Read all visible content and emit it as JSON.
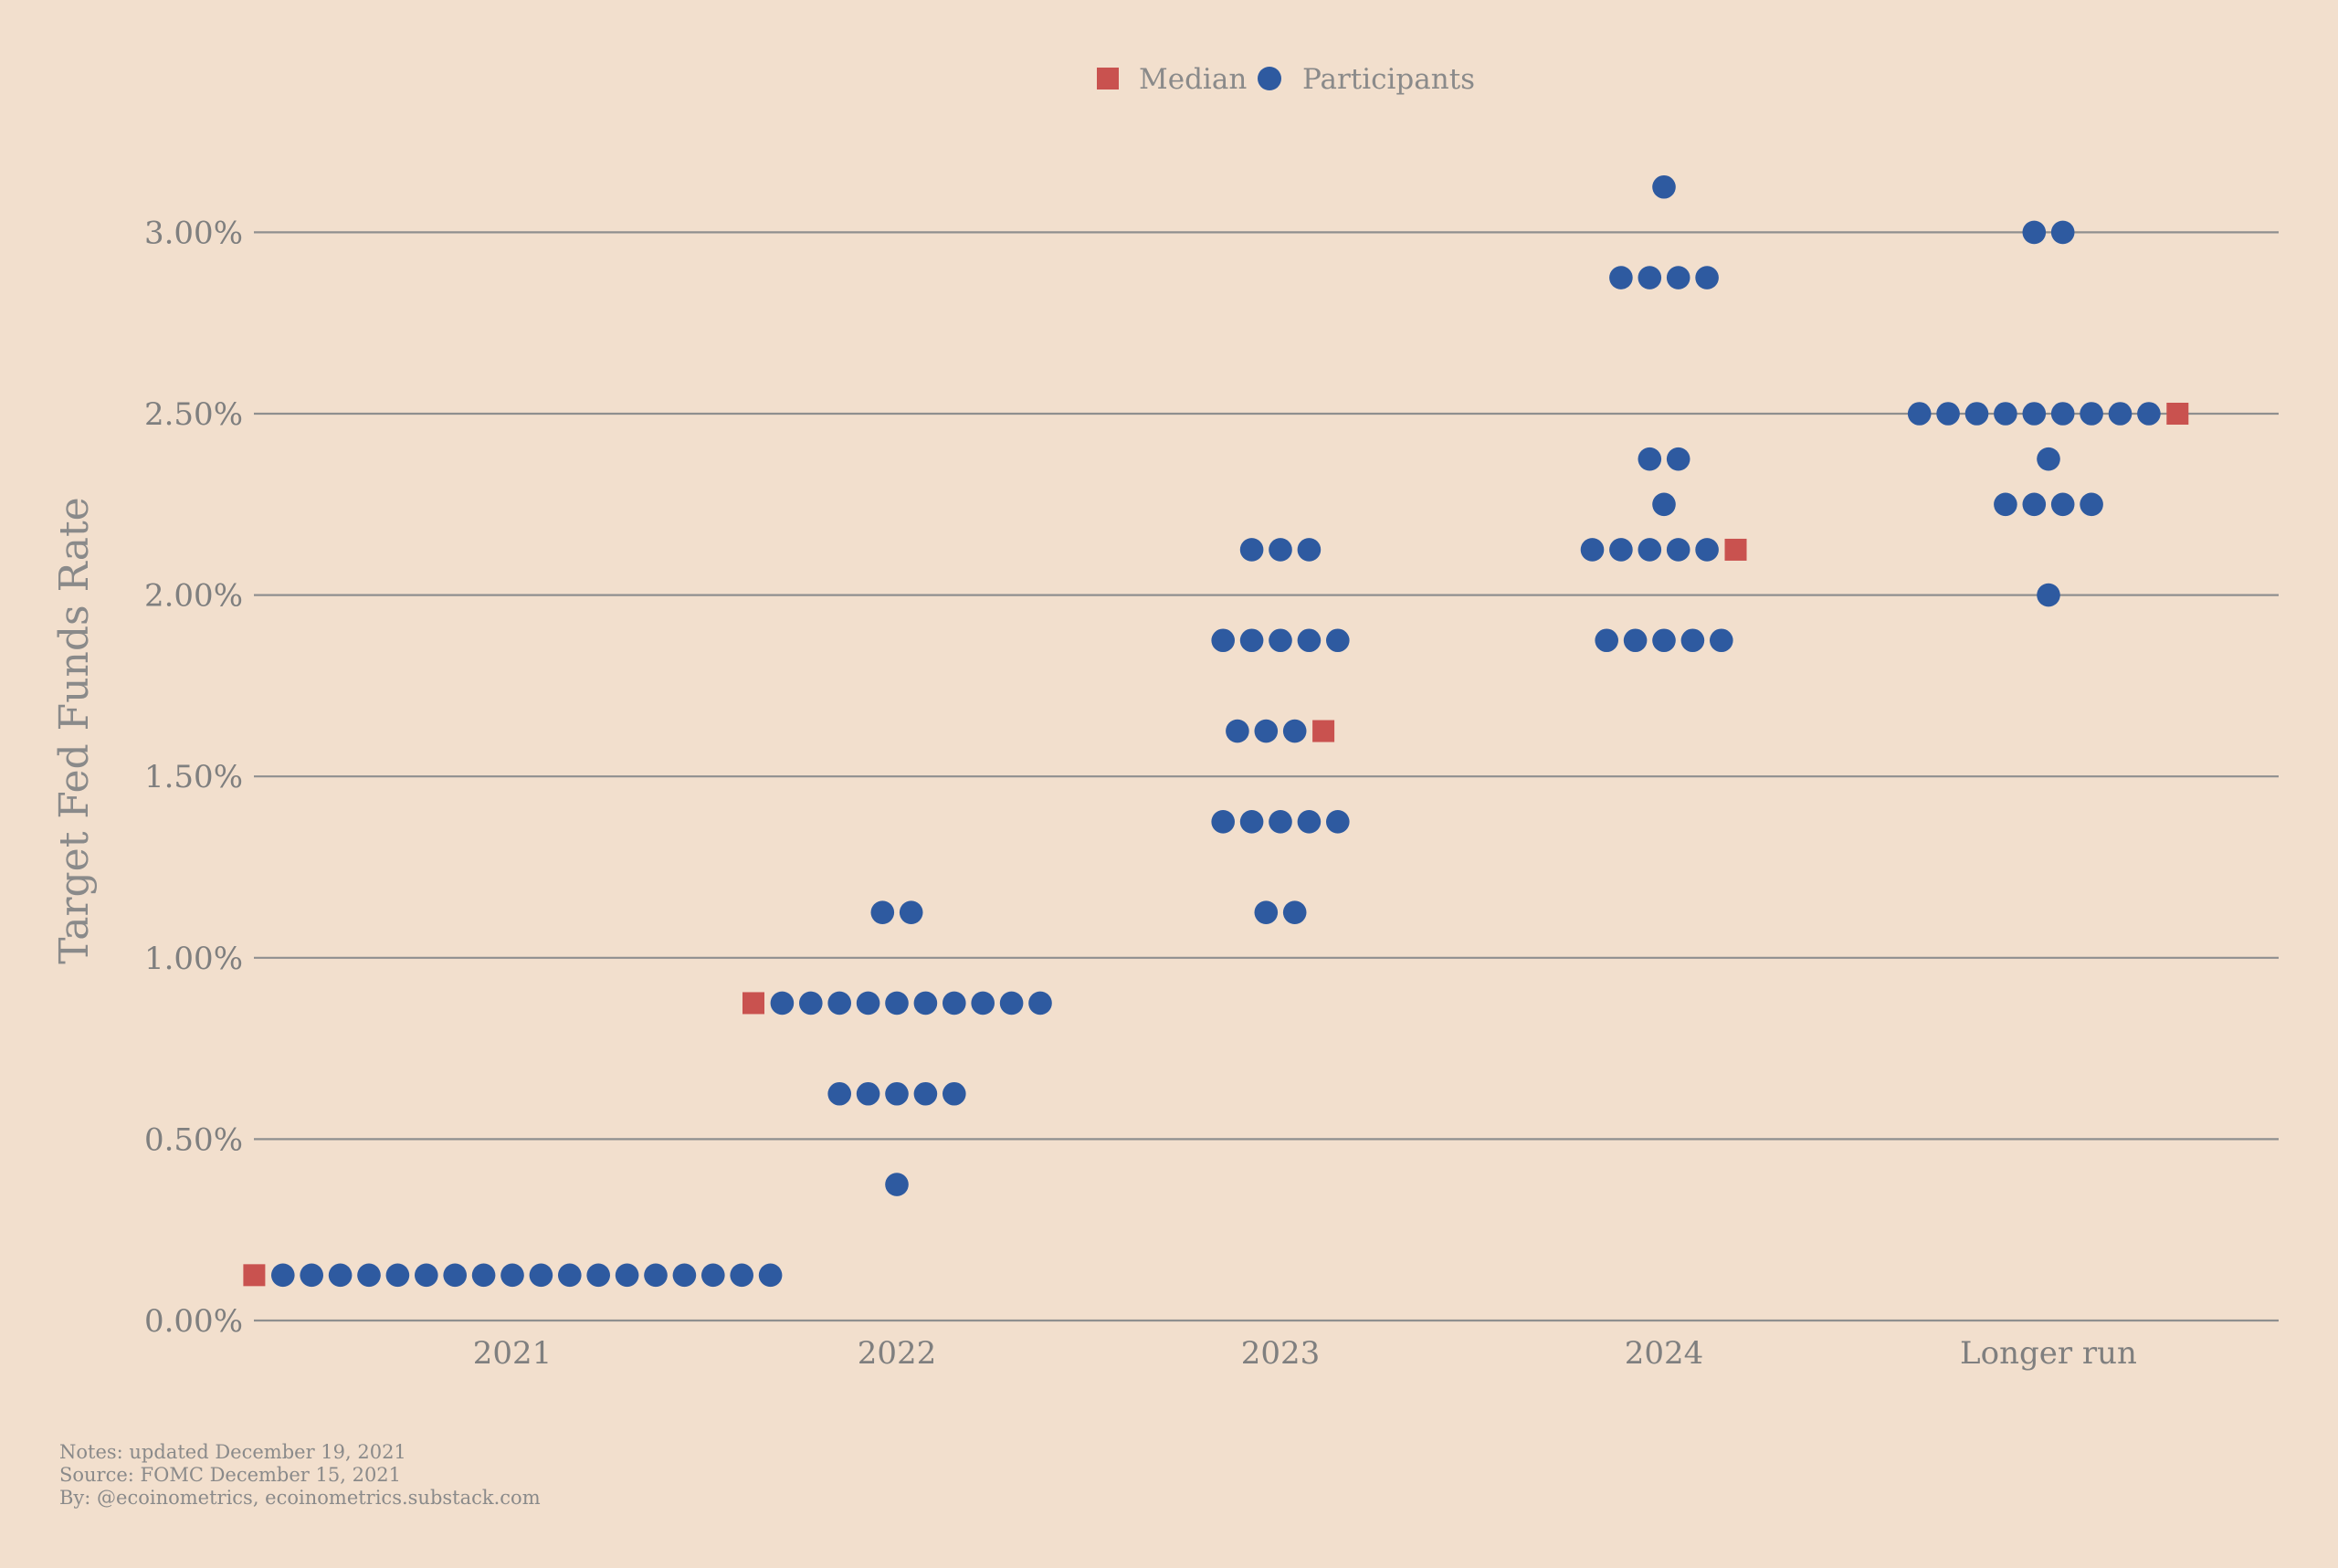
{
  "chart_data": {
    "type": "scatter",
    "title": "",
    "xlabel": "",
    "ylabel": "Target Fed Funds Rate",
    "categories": [
      "2021",
      "2022",
      "2023",
      "2024",
      "Longer run"
    ],
    "ylim": [
      0,
      3.25
    ],
    "yticks": [
      0,
      0.5,
      1.0,
      1.5,
      2.0,
      2.5,
      3.0
    ],
    "ytick_labels": [
      "0.00%",
      "0.50%",
      "1.00%",
      "1.50%",
      "2.00%",
      "2.50%",
      "3.00%"
    ],
    "grid": true,
    "legend_position": "top-center",
    "legend": [
      {
        "name": "Median",
        "marker": "square",
        "color": "#c9524f"
      },
      {
        "name": "Participants",
        "marker": "circle",
        "color": "#2e5aa0"
      }
    ],
    "participants": [
      {
        "category": "2021",
        "dots": [
          {
            "rate": 0.125,
            "count": 18
          }
        ]
      },
      {
        "category": "2022",
        "dots": [
          {
            "rate": 1.125,
            "count": 2
          },
          {
            "rate": 0.875,
            "count": 10
          },
          {
            "rate": 0.625,
            "count": 5
          },
          {
            "rate": 0.375,
            "count": 1
          }
        ]
      },
      {
        "category": "2023",
        "dots": [
          {
            "rate": 2.125,
            "count": 3
          },
          {
            "rate": 1.875,
            "count": 5
          },
          {
            "rate": 1.625,
            "count": 3
          },
          {
            "rate": 1.375,
            "count": 5
          },
          {
            "rate": 1.125,
            "count": 2
          }
        ]
      },
      {
        "category": "2024",
        "dots": [
          {
            "rate": 3.125,
            "count": 1
          },
          {
            "rate": 2.875,
            "count": 4
          },
          {
            "rate": 2.375,
            "count": 2
          },
          {
            "rate": 2.25,
            "count": 1
          },
          {
            "rate": 2.125,
            "count": 5
          },
          {
            "rate": 1.875,
            "count": 5
          }
        ]
      },
      {
        "category": "Longer run",
        "dots": [
          {
            "rate": 3.0,
            "count": 2
          },
          {
            "rate": 2.5,
            "count": 9
          },
          {
            "rate": 2.375,
            "count": 1
          },
          {
            "rate": 2.25,
            "count": 4
          },
          {
            "rate": 2.0,
            "count": 1
          }
        ]
      }
    ],
    "medians": [
      {
        "category": "2021",
        "rate": 0.125
      },
      {
        "category": "2022",
        "rate": 0.875
      },
      {
        "category": "2023",
        "rate": 1.625
      },
      {
        "category": "2024",
        "rate": 2.125
      },
      {
        "category": "Longer run",
        "rate": 2.5
      }
    ],
    "colors": {
      "participants": "#2e5aa0",
      "median": "#c9524f",
      "background": "#f2dfcd",
      "grid": "#8f8f8f",
      "text": "#7f7f7f"
    }
  },
  "footer": {
    "notes": "Notes: updated December 19, 2021",
    "source": "Source: FOMC December 15, 2021",
    "by": "By: @ecoinometrics, ecoinometrics.substack.com"
  }
}
